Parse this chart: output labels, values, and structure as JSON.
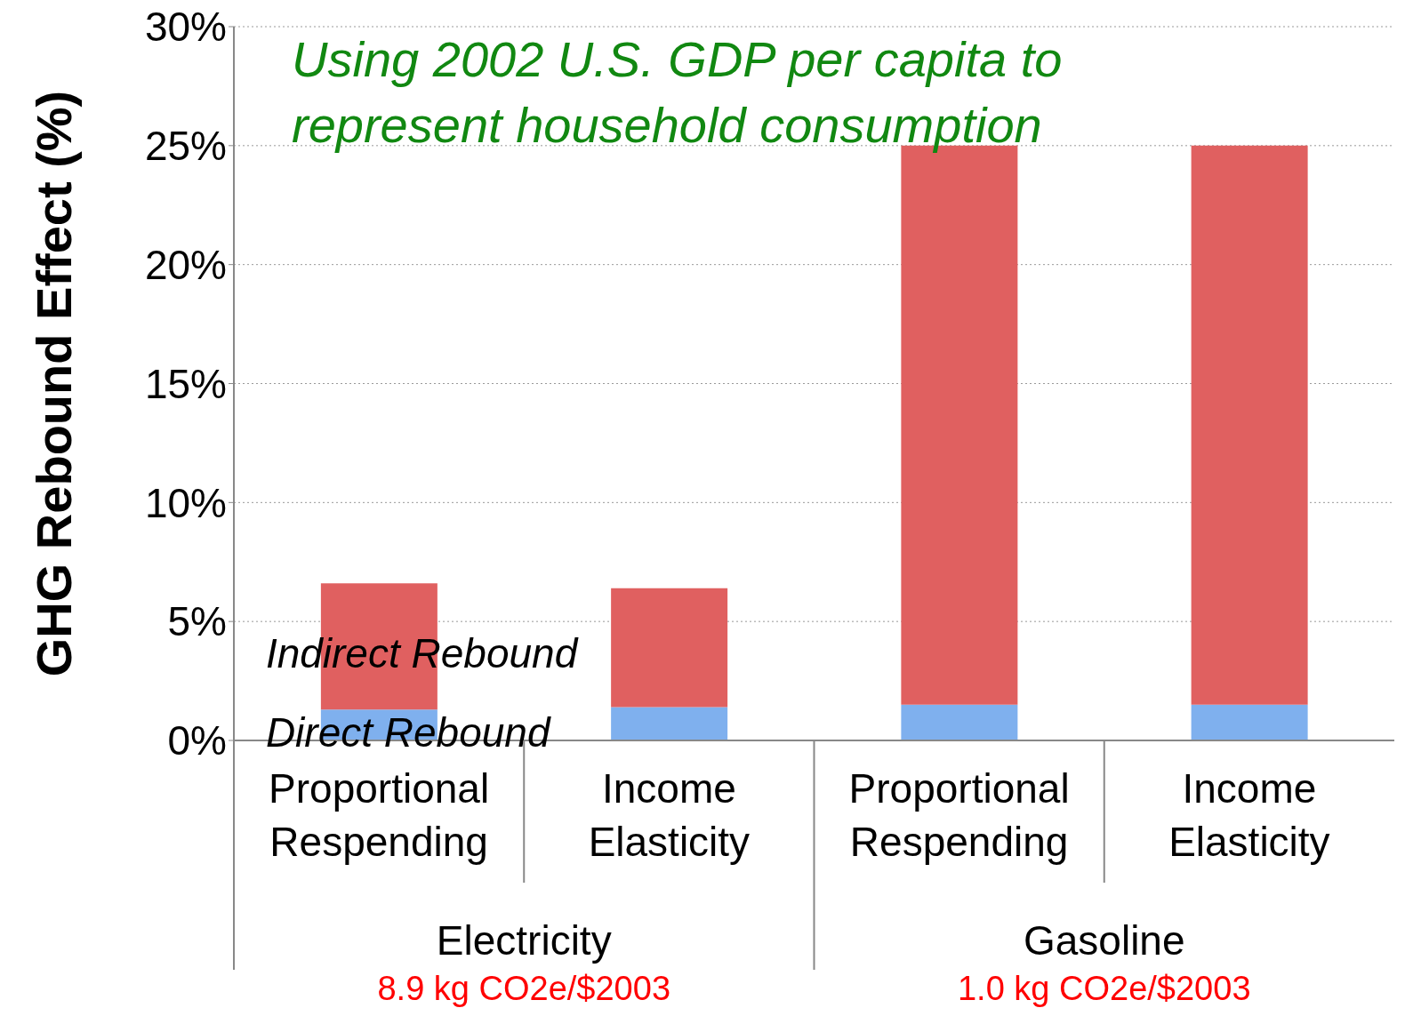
{
  "chart_data": {
    "type": "bar",
    "stacked": true,
    "ylabel": "GHG Rebound Effect (%)",
    "categories": [
      "Proportional Respending",
      "Income Elasticity",
      "Proportional Respending",
      "Income Elasticity"
    ],
    "series": [
      {
        "name": "Direct Rebound",
        "color": "#7fb0ee",
        "values": [
          1.3,
          1.4,
          1.5,
          1.5
        ]
      },
      {
        "name": "Indirect Rebound",
        "color": "#e06060",
        "values": [
          5.3,
          5.0,
          23.5,
          23.5
        ]
      }
    ],
    "ylim": [
      0,
      30
    ],
    "yticks": [
      {
        "value": 0,
        "label": "0%"
      },
      {
        "value": 5,
        "label": "5%"
      },
      {
        "value": 10,
        "label": "10%"
      },
      {
        "value": 15,
        "label": "15%"
      },
      {
        "value": 20,
        "label": "20%"
      },
      {
        "value": 25,
        "label": "25%"
      },
      {
        "value": 30,
        "label": "30%"
      }
    ],
    "grid": "y",
    "annotations": [
      "Using 2002 U.S. GDP per capita to represent household consumption",
      "Electricity",
      "Gasoline",
      "8.9 kg CO2e/$2003",
      "1.0 kg CO2e/$2003"
    ]
  }
}
